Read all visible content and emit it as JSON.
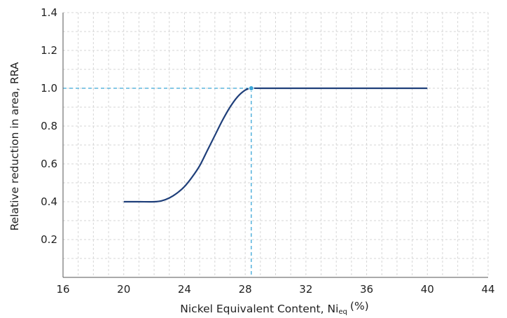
{
  "chart_data": {
    "type": "line",
    "title": "",
    "xlabel_main": "Nickel Equivalent Content, Ni",
    "xlabel_sub": "eq",
    "xlabel_unit": "(%)",
    "ylabel": "Relative reduction in area, RRA",
    "xlim": [
      16,
      44
    ],
    "ylim": [
      0,
      1.4
    ],
    "x_ticks": [
      "16",
      "20",
      "24",
      "28",
      "32",
      "36",
      "40",
      "44"
    ],
    "y_ticks": [
      "0.2",
      "0.4",
      "0.6",
      "0.8",
      "1.0",
      "1.2",
      "1.4"
    ],
    "grid": true,
    "series": [
      {
        "color": "#1f3f7a",
        "x": [
          20,
          21,
          22,
          22.5,
          23,
          23.5,
          24,
          24.5,
          25,
          25.5,
          26,
          26.5,
          27,
          27.5,
          28,
          28.4,
          29,
          32,
          36,
          40
        ],
        "y": [
          0.4,
          0.4,
          0.4,
          0.405,
          0.42,
          0.445,
          0.48,
          0.53,
          0.59,
          0.67,
          0.75,
          0.83,
          0.9,
          0.955,
          0.99,
          1.0,
          1.0,
          1.0,
          1.0,
          1.0
        ]
      }
    ],
    "marker": {
      "x": 28.4,
      "y": 1.0,
      "color": "#3aa6d8"
    },
    "reference_lines": {
      "x": 28.4,
      "y": 1.0,
      "color": "#3aa6d8",
      "style": "dashed"
    }
  }
}
